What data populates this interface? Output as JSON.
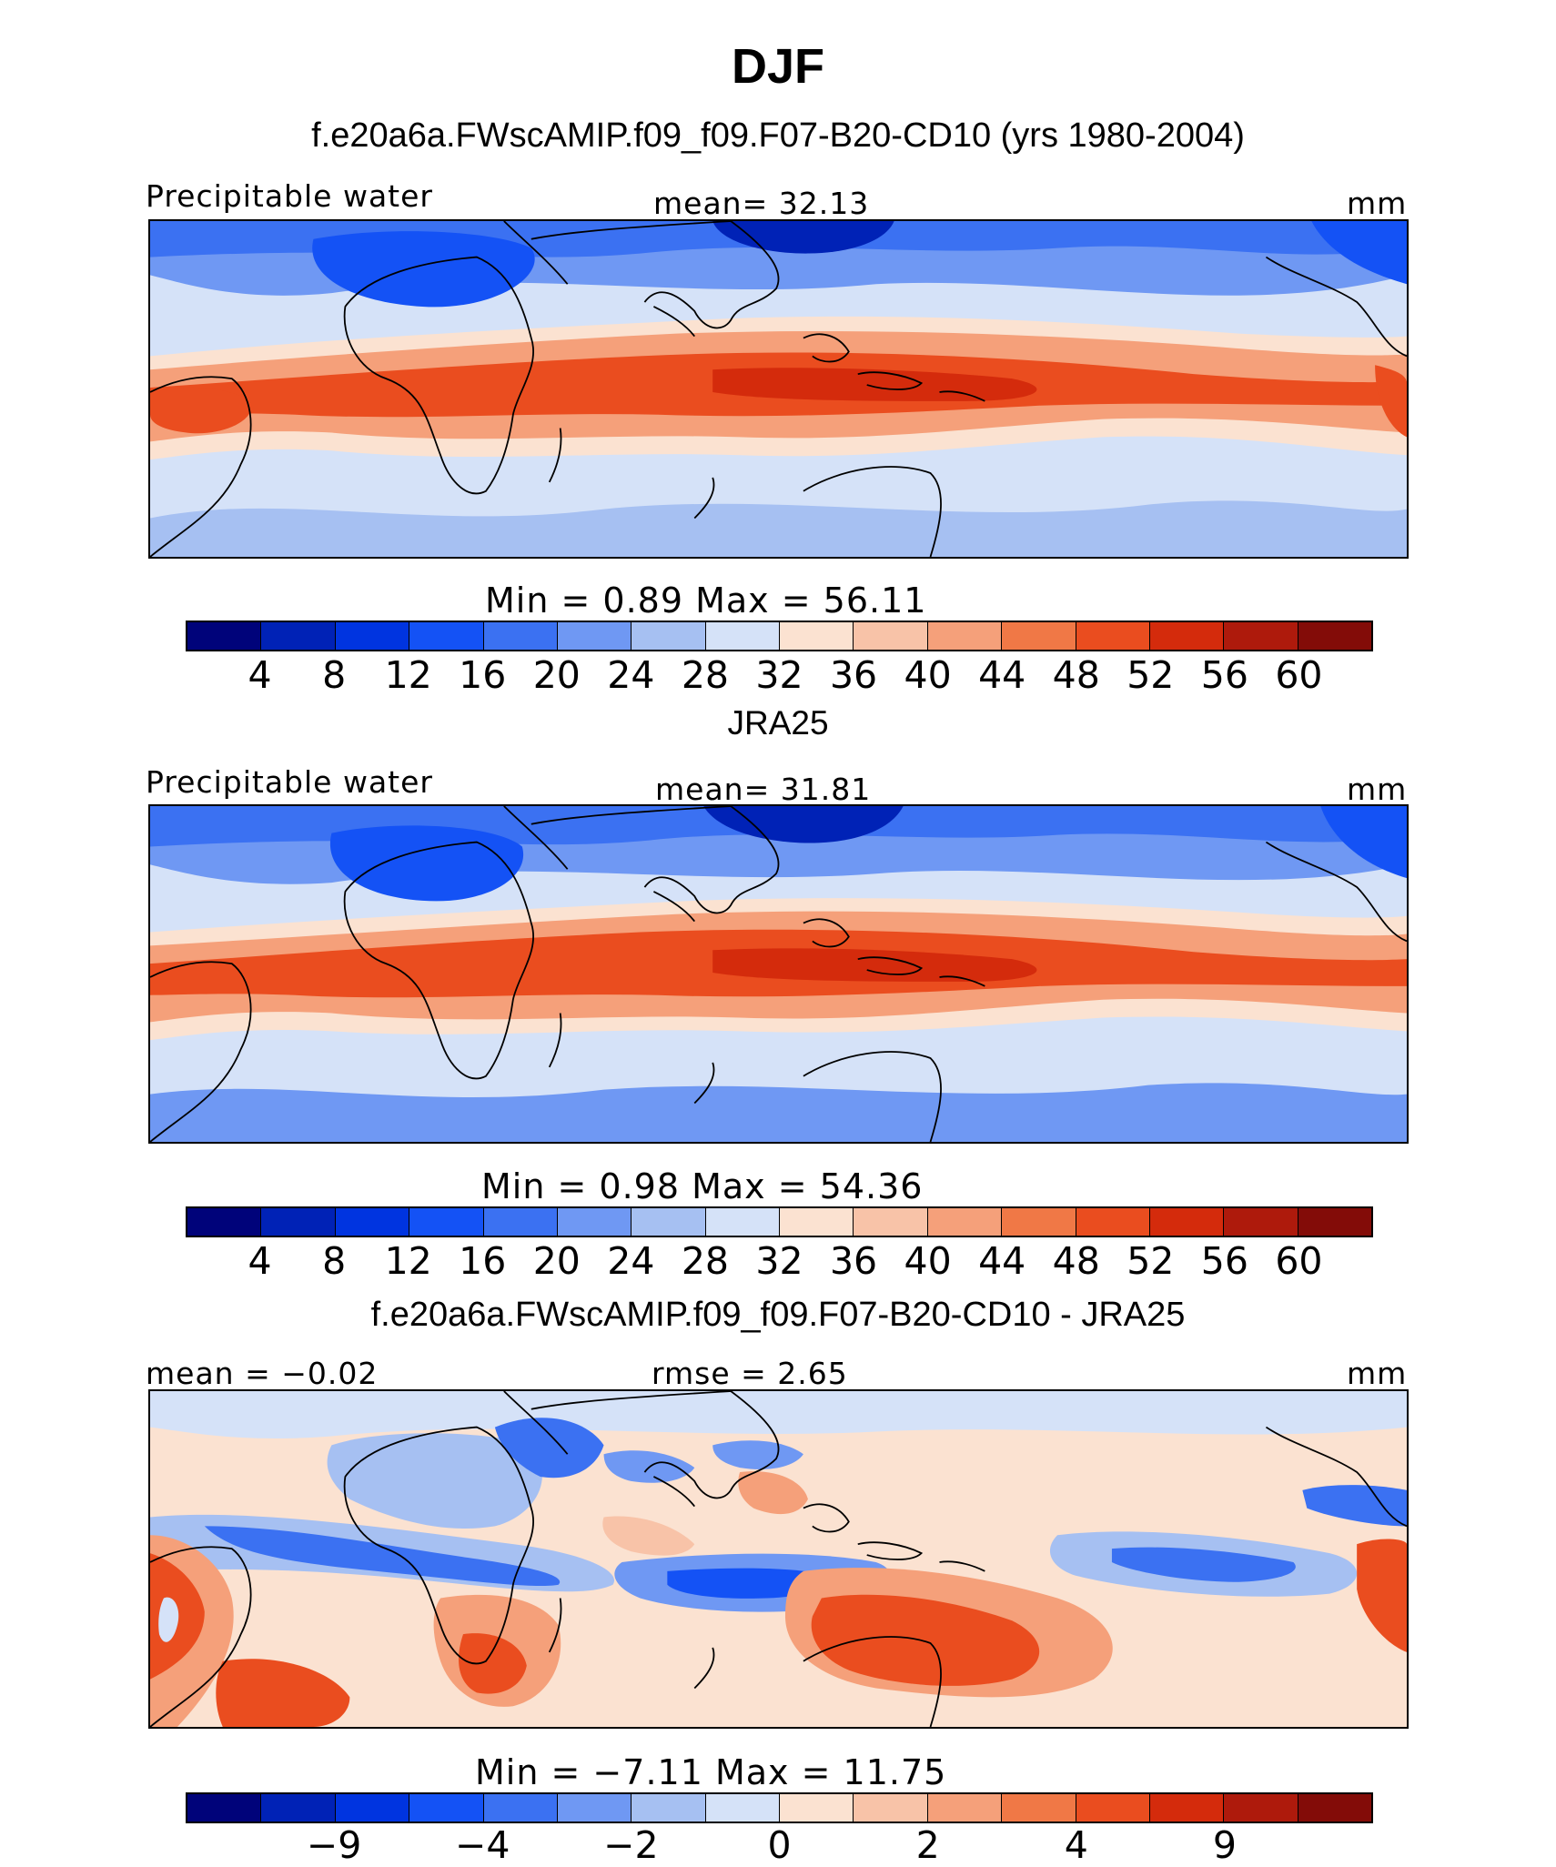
{
  "title": "DJF",
  "colorbar_colors": [
    "#00037a",
    "#0022b6",
    "#0034e0",
    "#1452f5",
    "#3b71f2",
    "#6f98f3",
    "#a6c0f2",
    "#d5e2f8",
    "#fbe2d1",
    "#f8c3a8",
    "#f5a07a",
    "#f07846",
    "#ea4d1f",
    "#d42b0c",
    "#ae1a0c",
    "#830c08"
  ],
  "panels": [
    {
      "name": "model",
      "title": "f.e20a6a.FWscAMIP.f09_f09.F07-B20-CD10 (yrs 1980-2004)",
      "left_label": "Precipitable water",
      "center_label": "mean=   32.13",
      "right_label": "mm",
      "minmax_label": "Min  =     0.89  Max  =   56.11",
      "ticks": [
        "4",
        "8",
        "12",
        "16",
        "20",
        "24",
        "28",
        "32",
        "36",
        "40",
        "44",
        "48",
        "52",
        "56",
        "60"
      ]
    },
    {
      "name": "obs",
      "title": "JRA25",
      "left_label": "Precipitable water",
      "center_label": "mean=   31.81",
      "right_label": "mm",
      "minmax_label": "Min  =     0.98  Max  =   54.36",
      "ticks": [
        "4",
        "8",
        "12",
        "16",
        "20",
        "24",
        "28",
        "32",
        "36",
        "40",
        "44",
        "48",
        "52",
        "56",
        "60"
      ]
    },
    {
      "name": "diff",
      "title": "f.e20a6a.FWscAMIP.f09_f09.F07-B20-CD10 - JRA25",
      "left_label": "mean  =   −0.02",
      "center_label": "rmse  =    2.65",
      "right_label": "mm",
      "minmax_label": "Min  =   −7.11  Max  =   11.75",
      "ticks": [
        "−9",
        "−4",
        "−2",
        "0",
        "2",
        "4",
        "9"
      ]
    }
  ]
}
